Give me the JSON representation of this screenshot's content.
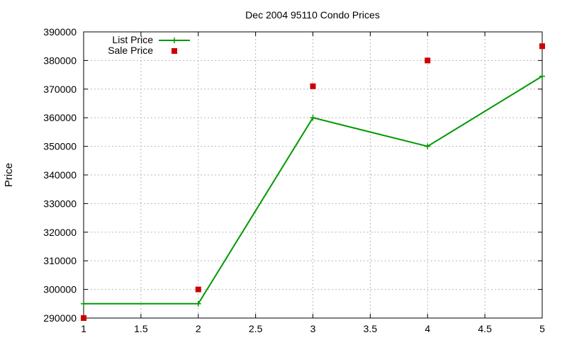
{
  "chart_data": {
    "type": "line",
    "title": "Dec 2004 95110 Condo Prices",
    "xlabel": "",
    "ylabel": "Price",
    "xlim": [
      1,
      5
    ],
    "ylim": [
      290000,
      390000
    ],
    "grid": true,
    "legend_position": "top-left",
    "x_ticks": [
      "1",
      "1.5",
      "2",
      "2.5",
      "3",
      "3.5",
      "4",
      "4.5",
      "5"
    ],
    "y_ticks": [
      "290000",
      "300000",
      "310000",
      "320000",
      "330000",
      "340000",
      "350000",
      "360000",
      "370000",
      "380000",
      "390000"
    ],
    "series": [
      {
        "name": "List Price",
        "style": "line-plus",
        "color": "#009900",
        "x": [
          1,
          2,
          3,
          4,
          5
        ],
        "y": [
          295000,
          295000,
          360000,
          350000,
          374500
        ]
      },
      {
        "name": "Sale Price",
        "style": "square-points",
        "color": "#cc0000",
        "x": [
          1,
          2,
          3,
          4,
          5
        ],
        "y": [
          290000,
          300000,
          371000,
          380000,
          385000
        ]
      }
    ]
  }
}
